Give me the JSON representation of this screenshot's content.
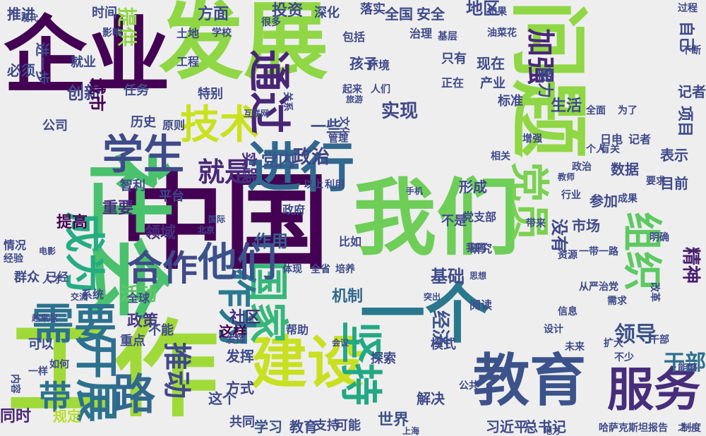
{
  "words": [
    {
      "text": "发展",
      "color": "#8fd744"
    },
    {
      "text": "企业",
      "color": "#440154"
    },
    {
      "text": "中国",
      "color": "#440154"
    },
    {
      "text": "工作",
      "color": "#a0da39"
    },
    {
      "text": "我们",
      "color": "#6ece58"
    },
    {
      "text": "社会",
      "color": "#4ac16d"
    },
    {
      "text": "问题",
      "color": "#8fd744"
    },
    {
      "text": "一个",
      "color": "#29788e"
    },
    {
      "text": "教育",
      "color": "#3b528b"
    },
    {
      "text": "进行",
      "color": "#31688e"
    },
    {
      "text": "建设",
      "color": "#c8e020"
    },
    {
      "text": "服务",
      "color": "#472d7b"
    },
    {
      "text": "开展",
      "color": "#2c728e"
    },
    {
      "text": "需要",
      "color": "#2c728e"
    },
    {
      "text": "成为",
      "color": "#25ac82"
    },
    {
      "text": "学生",
      "color": "#3e4a89"
    },
    {
      "text": "技术",
      "color": "#cae11f"
    },
    {
      "text": "党员",
      "color": "#7ad151"
    },
    {
      "text": "国家",
      "color": "#35b779"
    },
    {
      "text": "组织",
      "color": "#5ec962"
    },
    {
      "text": "加强",
      "color": "#482878"
    },
    {
      "text": "坚持",
      "color": "#22a884"
    },
    {
      "text": "作为",
      "color": "#2a788e"
    },
    {
      "text": "他们",
      "color": "#3b528b"
    },
    {
      "text": "通过",
      "color": "#482576"
    },
    {
      "text": "路",
      "color": "#31688e"
    },
    {
      "text": "提供",
      "color": "#8fd744"
    },
    {
      "text": "就是",
      "color": "#482878"
    },
    {
      "text": "合作",
      "color": "#3e4a89"
    },
    {
      "text": "推动",
      "color": "#3e4a89"
    },
    {
      "text": "领导",
      "color": "#3b528b"
    },
    {
      "text": "精神",
      "color": "#481f70"
    },
    {
      "text": "干部",
      "color": "#2d708e"
    },
    {
      "text": "带",
      "color": "#2c728e"
    },
    {
      "text": "实现",
      "color": "#404688"
    },
    {
      "text": "政策",
      "color": "#443983"
    },
    {
      "text": "活动",
      "color": "#5ec962"
    },
    {
      "text": "经济",
      "color": "#3b528b"
    },
    {
      "text": "基础",
      "color": "#3e4a89"
    },
    {
      "text": "重要",
      "color": "#472d7b"
    },
    {
      "text": "提高",
      "color": "#440154"
    },
    {
      "text": "创新",
      "color": "#404688"
    },
    {
      "text": "城市",
      "color": "#440154"
    },
    {
      "text": "机制",
      "color": "#31688e"
    },
    {
      "text": "政治",
      "color": "#414487"
    },
    {
      "text": "党内",
      "color": "#3b528b"
    },
    {
      "text": "实践",
      "color": "#46307e"
    },
    {
      "text": "领域",
      "color": "#46307e"
    },
    {
      "text": "作用",
      "color": "#355f8d"
    },
    {
      "text": "社区",
      "color": "#46307e"
    },
    {
      "text": "世界",
      "color": "#3b528b"
    },
    {
      "text": "规定",
      "color": "#b5de2b"
    },
    {
      "text": "同时",
      "color": "#482576"
    },
    {
      "text": "这样",
      "color": "#440154"
    },
    {
      "text": "方式",
      "color": "#404688"
    },
    {
      "text": "学习",
      "color": "#3b528b"
    },
    {
      "text": "教育",
      "color": "#3e4a89"
    },
    {
      "text": "支持",
      "color": "#3e4a89"
    },
    {
      "text": "解决",
      "color": "#3e4a89"
    },
    {
      "text": "习近平",
      "color": "#3e4a89"
    },
    {
      "text": "总书记",
      "color": "#3e4a89"
    },
    {
      "text": "哈萨克斯坦",
      "color": "#3e4a89"
    },
    {
      "text": "报告",
      "color": "#3e4a89"
    },
    {
      "text": "制度",
      "color": "#3e4a89"
    },
    {
      "text": "市场",
      "color": "#3e4a89"
    },
    {
      "text": "没有",
      "color": "#3e4a89"
    },
    {
      "text": "参加",
      "color": "#3e4a89"
    },
    {
      "text": "数据",
      "color": "#3e4a89"
    },
    {
      "text": "目前",
      "color": "#3e4a89"
    },
    {
      "text": "表示",
      "color": "#3e4a89"
    },
    {
      "text": "自己",
      "color": "#3e4a89"
    },
    {
      "text": "项目",
      "color": "#3e4a89"
    },
    {
      "text": "记者",
      "color": "#3e4a89"
    },
    {
      "text": "生活",
      "color": "#3e4a89"
    },
    {
      "text": "推进",
      "color": "#3e4a89"
    },
    {
      "text": "时间",
      "color": "#3e4a89"
    },
    {
      "text": "方面",
      "color": "#3e4a89"
    },
    {
      "text": "投资",
      "color": "#3e4a89"
    },
    {
      "text": "地区",
      "color": "#3e4a89"
    },
    {
      "text": "全国",
      "color": "#3e4a89"
    },
    {
      "text": "安全",
      "color": "#3e4a89"
    },
    {
      "text": "深化",
      "color": "#3e4a89"
    },
    {
      "text": "落实",
      "color": "#3e4a89"
    },
    {
      "text": "一些",
      "color": "#3e4a89"
    },
    {
      "text": "孩子",
      "color": "#3e4a89"
    },
    {
      "text": "现在",
      "color": "#3e4a89"
    },
    {
      "text": "只有",
      "color": "#3e4a89"
    },
    {
      "text": "产业",
      "color": "#3e4a89"
    },
    {
      "text": "标准",
      "color": "#3e4a89"
    },
    {
      "text": "能力",
      "color": "#3e4a89"
    },
    {
      "text": "正在",
      "color": "#3e4a89"
    },
    {
      "text": "日电",
      "color": "#3e4a89"
    },
    {
      "text": "记者",
      "color": "#3e4a89"
    },
    {
      "text": "为了",
      "color": "#3e4a89"
    },
    {
      "text": "全面",
      "color": "#3e4a89"
    },
    {
      "text": "历史",
      "color": "#3e4a89"
    },
    {
      "text": "原则",
      "color": "#3e4a89"
    },
    {
      "text": "公司",
      "color": "#3e4a89"
    },
    {
      "text": "平台",
      "color": "#3e4a89"
    },
    {
      "text": "智利",
      "color": "#3e4a89"
    },
    {
      "text": "特别",
      "color": "#3e4a89"
    },
    {
      "text": "就业",
      "color": "#3e4a89"
    },
    {
      "text": "任务",
      "color": "#3e4a89"
    },
    {
      "text": "必须",
      "color": "#3e4a89"
    },
    {
      "text": "进一步",
      "color": "#3e4a89"
    },
    {
      "text": "情况",
      "color": "#3e4a89"
    },
    {
      "text": "群众",
      "color": "#3e4a89"
    },
    {
      "text": "已经",
      "color": "#3e4a89"
    },
    {
      "text": "全球",
      "color": "#3e4a89"
    },
    {
      "text": "系统",
      "color": "#3e4a89"
    },
    {
      "text": "重点",
      "color": "#3e4a89"
    },
    {
      "text": "不能",
      "color": "#3e4a89"
    },
    {
      "text": "发挥",
      "color": "#3e4a89"
    },
    {
      "text": "这个",
      "color": "#3e4a89"
    },
    {
      "text": "共同",
      "color": "#3e4a89"
    },
    {
      "text": "可能",
      "color": "#3e4a89"
    },
    {
      "text": "探索",
      "color": "#3e4a89"
    },
    {
      "text": "帮助",
      "color": "#3e4a89"
    },
    {
      "text": "阅读",
      "color": "#3e4a89"
    },
    {
      "text": "模式",
      "color": "#3e4a89"
    },
    {
      "text": "研究",
      "color": "#3e4a89"
    },
    {
      "text": "形成",
      "color": "#3e4a89"
    },
    {
      "text": "政府",
      "color": "#3e4a89"
    },
    {
      "text": "比如",
      "color": "#3e4a89"
    },
    {
      "text": "不是",
      "color": "#3e4a89"
    },
    {
      "text": "党支部",
      "color": "#3e4a89"
    },
    {
      "text": "相关",
      "color": "#3e4a89"
    },
    {
      "text": "增强",
      "color": "#3e4a89"
    },
    {
      "text": "以上",
      "color": "#3e4a89"
    },
    {
      "text": "利用",
      "color": "#3e4a89"
    },
    {
      "text": "扩大",
      "color": "#3e4a89"
    },
    {
      "text": "干部",
      "color": "#3e4a89"
    },
    {
      "text": "能够",
      "color": "#3e4a89"
    },
    {
      "text": "改革",
      "color": "#3e4a89"
    },
    {
      "text": "信息",
      "color": "#3e4a89"
    },
    {
      "text": "资源",
      "color": "#3e4a89"
    },
    {
      "text": "带来",
      "color": "#3e4a89"
    },
    {
      "text": "成果",
      "color": "#3e4a89"
    },
    {
      "text": "要求",
      "color": "#3e4a89"
    },
    {
      "text": "包括",
      "color": "#3e4a89"
    },
    {
      "text": "环境",
      "color": "#3e4a89"
    },
    {
      "text": "很多",
      "color": "#3e4a89"
    },
    {
      "text": "关系",
      "color": "#3e4a89"
    },
    {
      "text": "文化",
      "color": "#3e4a89"
    },
    {
      "text": "人才",
      "color": "#3e4a89"
    },
    {
      "text": "经验",
      "color": "#3e4a89"
    },
    {
      "text": "一样",
      "color": "#3e4a89"
    },
    {
      "text": "内容",
      "color": "#3e4a89"
    },
    {
      "text": "如何",
      "color": "#3e4a89"
    },
    {
      "text": "可以",
      "color": "#3e4a89"
    },
    {
      "text": "发挥",
      "color": "#3e4a89"
    },
    {
      "text": "体现",
      "color": "#3e4a89"
    },
    {
      "text": "全省",
      "color": "#3e4a89"
    },
    {
      "text": "培养",
      "color": "#3e4a89"
    },
    {
      "text": "治理",
      "color": "#3e4a89"
    },
    {
      "text": "土地",
      "color": "#3e4a89"
    },
    {
      "text": "工程",
      "color": "#3e4a89"
    },
    {
      "text": "油菜花",
      "color": "#3e4a89"
    },
    {
      "text": "基层",
      "color": "#3e4a89"
    },
    {
      "text": "起来",
      "color": "#3e4a89"
    },
    {
      "text": "人们",
      "color": "#3e4a89"
    },
    {
      "text": "管理",
      "color": "#3e4a89"
    },
    {
      "text": "如果",
      "color": "#3e4a89"
    },
    {
      "text": "影响",
      "color": "#3e4a89"
    },
    {
      "text": "学校",
      "color": "#3e4a89"
    },
    {
      "text": "现代",
      "color": "#3e4a89"
    },
    {
      "text": "过程",
      "color": "#3e4a89"
    },
    {
      "text": "不断",
      "color": "#3e4a89"
    },
    {
      "text": "行业",
      "color": "#3e4a89"
    },
    {
      "text": "政治",
      "color": "#3e4a89"
    },
    {
      "text": "个人",
      "color": "#3e4a89"
    },
    {
      "text": "有关",
      "color": "#3e4a89"
    },
    {
      "text": "明确",
      "color": "#3e4a89"
    },
    {
      "text": "从严治党",
      "color": "#3e4a89"
    },
    {
      "text": "需求",
      "color": "#3e4a89"
    },
    {
      "text": "设计",
      "color": "#3e4a89"
    },
    {
      "text": "未来",
      "color": "#3e4a89"
    },
    {
      "text": "一带一路",
      "color": "#3e4a89"
    },
    {
      "text": "公共",
      "color": "#3e4a89"
    },
    {
      "text": "不少",
      "color": "#3e4a89"
    },
    {
      "text": "旅游",
      "color": "#3e4a89"
    },
    {
      "text": "互联网",
      "color": "#3e4a89"
    },
    {
      "text": "电影",
      "color": "#3e4a89"
    },
    {
      "text": "越来越",
      "color": "#3e4a89"
    },
    {
      "text": "北京",
      "color": "#3e4a89"
    },
    {
      "text": "国际",
      "color": "#3e4a89"
    },
    {
      "text": "地方",
      "color": "#3e4a89"
    },
    {
      "text": "上海",
      "color": "#3e4a89"
    },
    {
      "text": "我国",
      "color": "#3e4a89"
    },
    {
      "text": "突出",
      "color": "#3e4a89"
    },
    {
      "text": "教师",
      "color": "#3e4a89"
    },
    {
      "text": "会议",
      "color": "#3e4a89"
    },
    {
      "text": "思想",
      "color": "#3e4a89"
    },
    {
      "text": "之一",
      "color": "#3e4a89"
    },
    {
      "text": "手机",
      "color": "#3e4a89"
    },
    {
      "text": "交流",
      "color": "#3e4a89"
    }
  ]
}
